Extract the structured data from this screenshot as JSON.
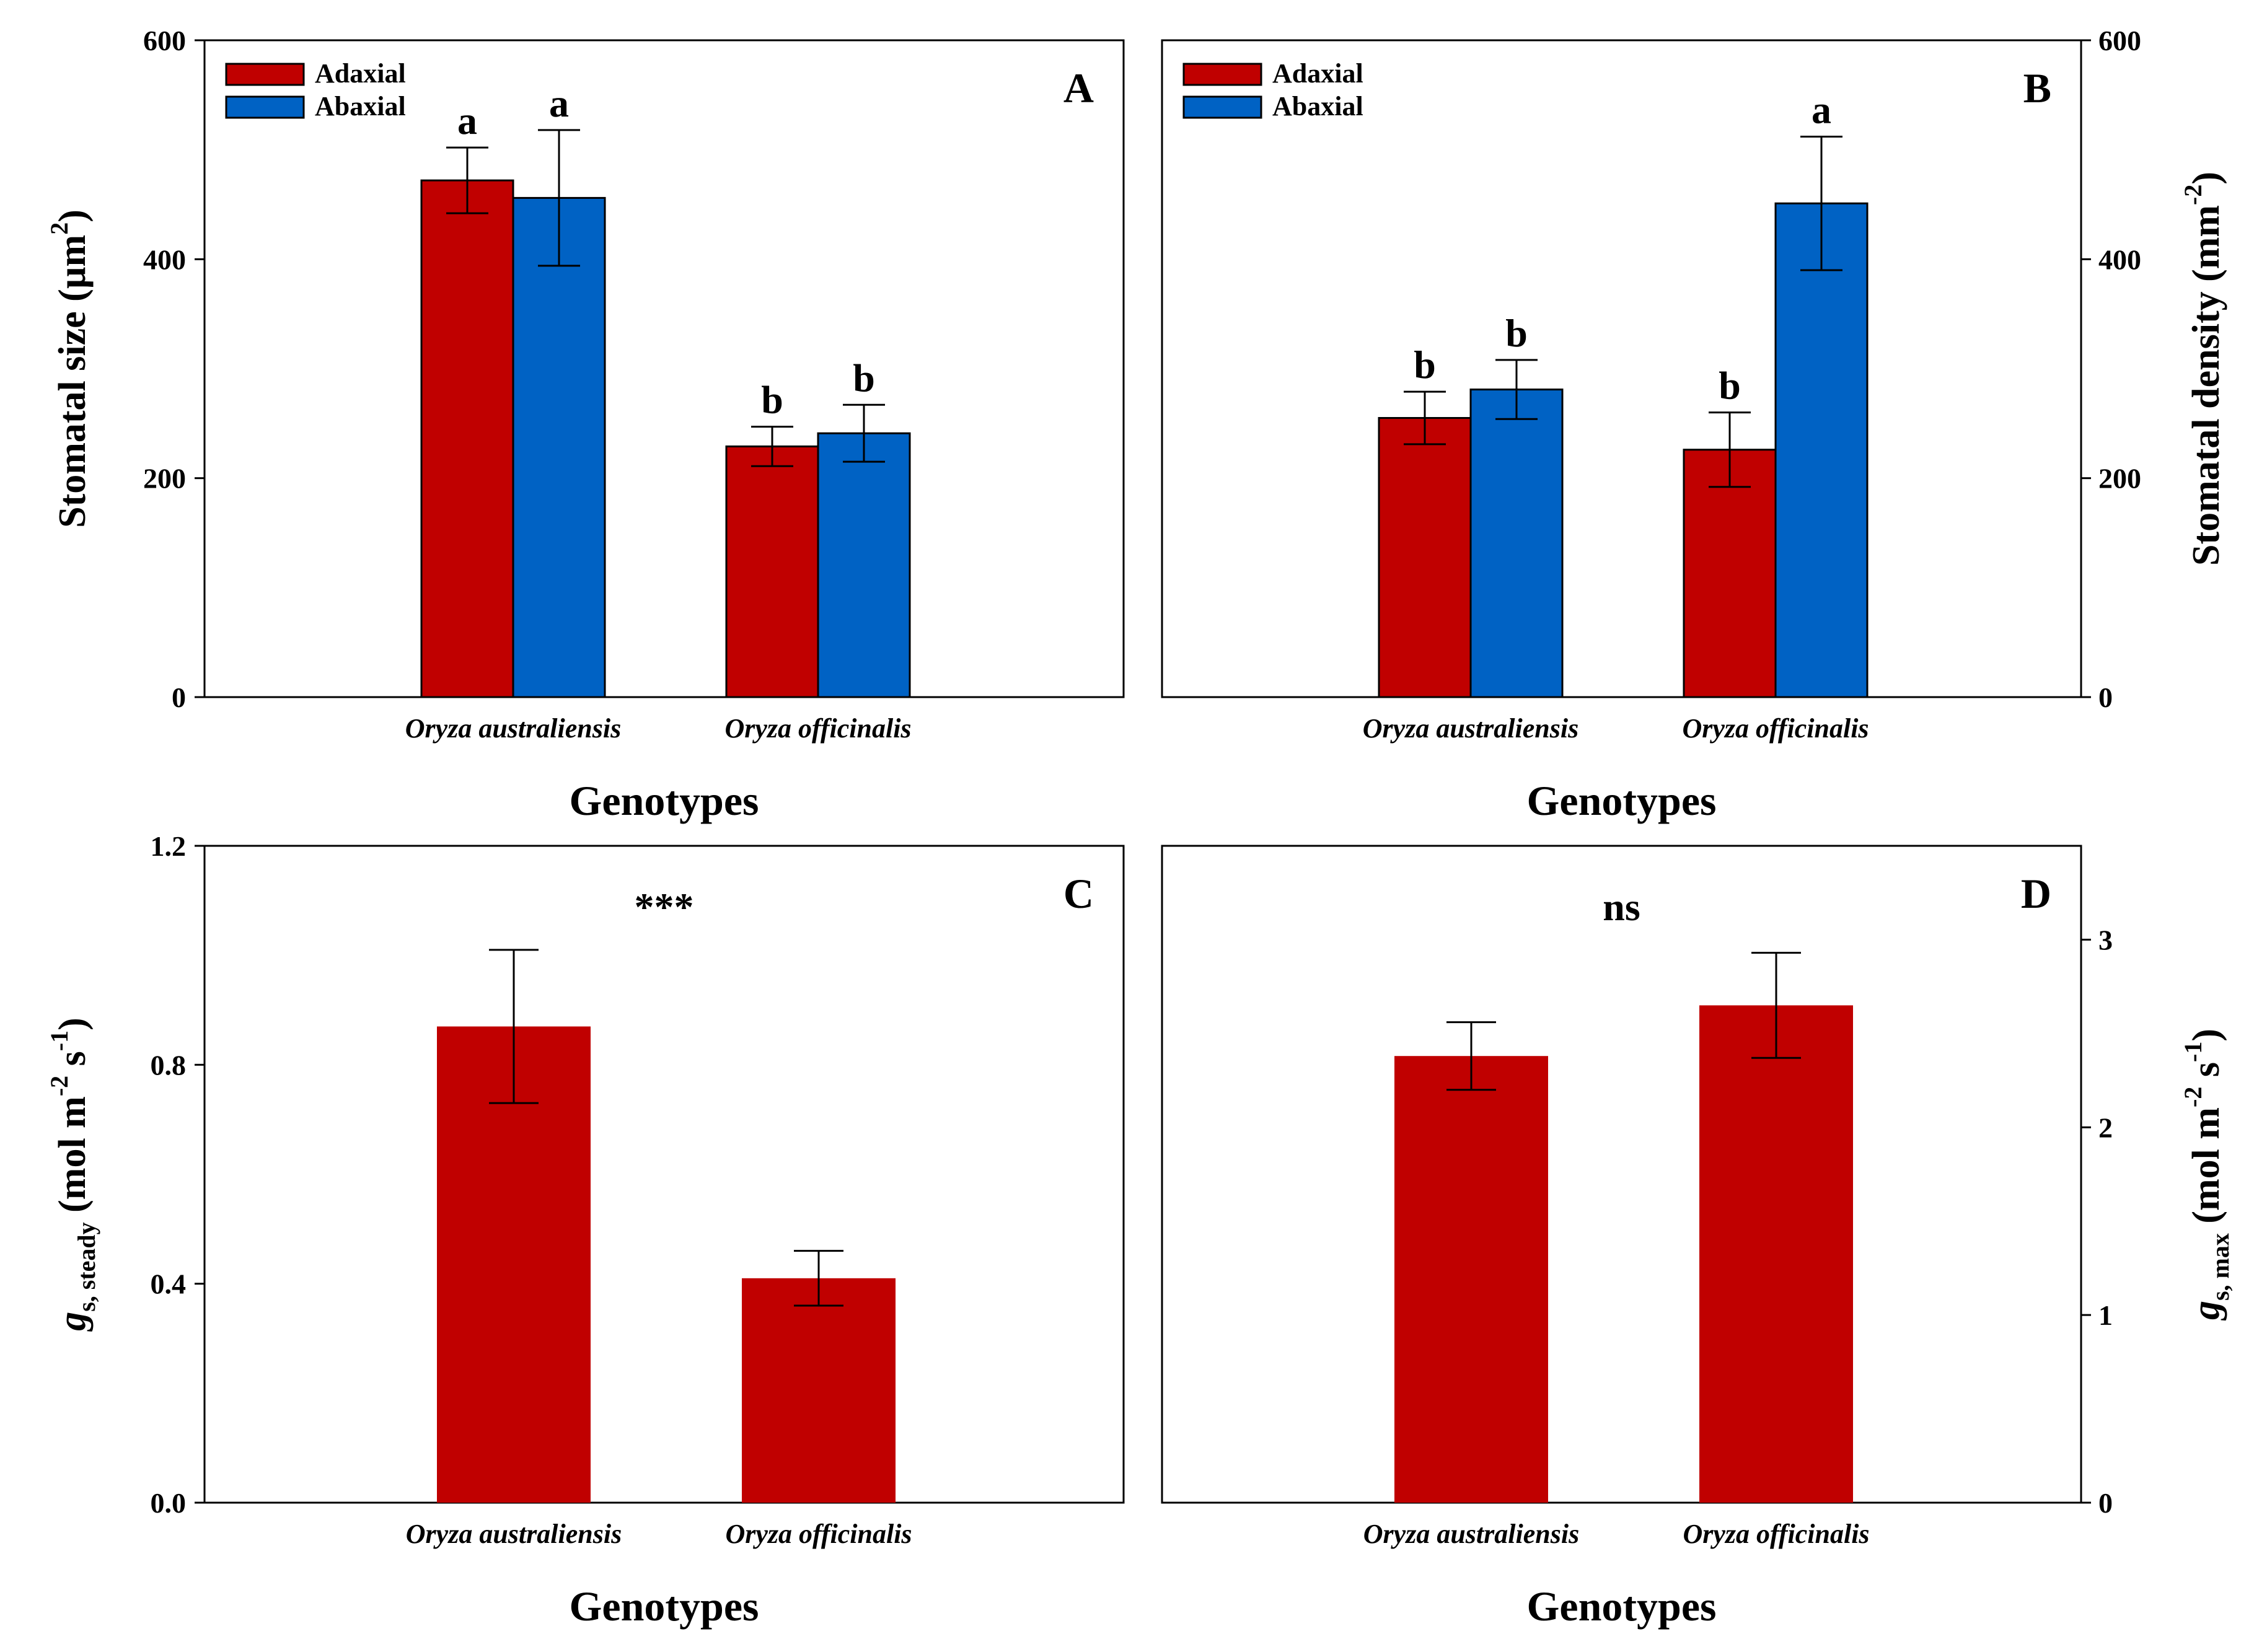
{
  "colors": {
    "adaxial": "#c00000",
    "abaxial": "#0062c4",
    "axis": "#000000"
  },
  "chart_data": [
    {
      "id": "A",
      "type": "bar",
      "panel_label": "A",
      "title": "",
      "xlabel": "Genotypes",
      "ylabel": {
        "main": "Stomatal size (µm",
        "sup": "2",
        "tail": ")"
      },
      "ylim": [
        0,
        600
      ],
      "yticks": [
        "0",
        "200",
        "400",
        "600"
      ],
      "categories": [
        "Oryza australiensis",
        "Oryza officinalis"
      ],
      "legend": {
        "entries": [
          "Adaxial",
          "Abaxial"
        ],
        "position": "top-left"
      },
      "series": [
        {
          "name": "Adaxial",
          "values": [
            472,
            229
          ],
          "errors": [
            30,
            18
          ],
          "letters": [
            "a",
            "b"
          ]
        },
        {
          "name": "Abaxial",
          "values": [
            456,
            241
          ],
          "errors": [
            62,
            26
          ],
          "letters": [
            "a",
            "b"
          ]
        }
      ]
    },
    {
      "id": "B",
      "type": "bar",
      "panel_label": "B",
      "title": "",
      "xlabel": "Genotypes",
      "ylabel": {
        "main": "Stomatal density (mm",
        "sup": "-2",
        "tail": ")"
      },
      "ylim": [
        0,
        600
      ],
      "yticks": [
        "0",
        "200",
        "400",
        "600"
      ],
      "categories": [
        "Oryza australiensis",
        "Oryza officinalis"
      ],
      "legend": {
        "entries": [
          "Adaxial",
          "Abaxial"
        ],
        "position": "top-left"
      },
      "series": [
        {
          "name": "Adaxial",
          "values": [
            255,
            226
          ],
          "errors": [
            24,
            34
          ],
          "letters": [
            "b",
            "b"
          ]
        },
        {
          "name": "Abaxial",
          "values": [
            281,
            451
          ],
          "errors": [
            27,
            61
          ],
          "letters": [
            "b",
            "a"
          ]
        }
      ]
    },
    {
      "id": "C",
      "type": "bar",
      "panel_label": "C",
      "title": "",
      "significance": "***",
      "xlabel": "Genotypes",
      "ylabel": {
        "italic": "g",
        "sub": "s, steady",
        "main": " (mol m",
        "sup1": "-2",
        "mid": " s",
        "sup2": "-1",
        "tail": ")"
      },
      "ylim": [
        0,
        1.2
      ],
      "yticks": [
        "0.0",
        "0.4",
        "0.8",
        "1.2"
      ],
      "categories": [
        "Oryza australiensis",
        "Oryza officinalis"
      ],
      "series": [
        {
          "name": "gs,steady",
          "values": [
            0.87,
            0.41
          ],
          "errors": [
            0.14,
            0.05
          ]
        }
      ]
    },
    {
      "id": "D",
      "type": "bar",
      "panel_label": "D",
      "title": "",
      "significance": "ns",
      "xlabel": "Genotypes",
      "ylabel": {
        "italic": "g",
        "sub": "s, max",
        "main": " (mol m",
        "sup1": "-2",
        "mid": " s",
        "sup2": "-1",
        "tail": ")"
      },
      "ylim": [
        0,
        3.5
      ],
      "yticks": [
        "0",
        "1",
        "2",
        "3"
      ],
      "categories": [
        "Oryza australiensis",
        "Oryza officinalis"
      ],
      "series": [
        {
          "name": "gs,max",
          "values": [
            2.38,
            2.65
          ],
          "errors": [
            0.18,
            0.28
          ]
        }
      ]
    }
  ]
}
